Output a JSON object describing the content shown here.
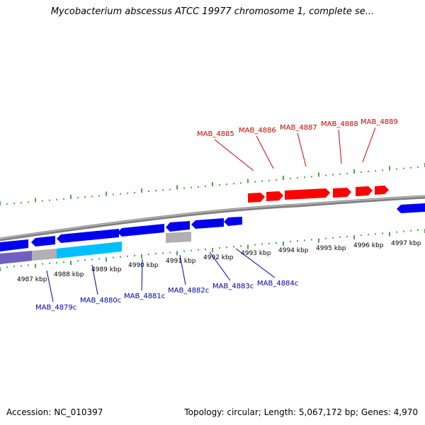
{
  "title": "Mycobacterium abscessus ATCC 19977 chromosome 1, complete se...",
  "footer": {
    "accession": "Accession: NC_010397",
    "summary": "Topology: circular; Length: 5,067,172 bp; Genes: 4,970"
  },
  "colors": {
    "forward_gene": "#ff0000",
    "reverse_gene": "#0000ee",
    "backbone": "#808080",
    "tick": "#228b22",
    "pseudo_gene": "#b0b0b0",
    "rna_gene": "#00bfff",
    "other_gene": "#7060c0"
  },
  "scale": {
    "labels": [
      "4987 kbp",
      "4988 kbp",
      "4989 kbp",
      "4990 kbp",
      "4991 kbp",
      "4992 kbp",
      "4993 kbp",
      "4994 kbp",
      "4995 kbp",
      "4996 kbp",
      "4997 kbp"
    ]
  },
  "genes_forward": [
    "MAB_4885",
    "MAB_4886",
    "MAB_4887",
    "MAB_4888",
    "MAB_4889"
  ],
  "genes_reverse": [
    "MAB_4879c",
    "MAB_4880c",
    "MAB_4881c",
    "MAB_4882c",
    "MAB_4883c",
    "MAB_4884c"
  ]
}
